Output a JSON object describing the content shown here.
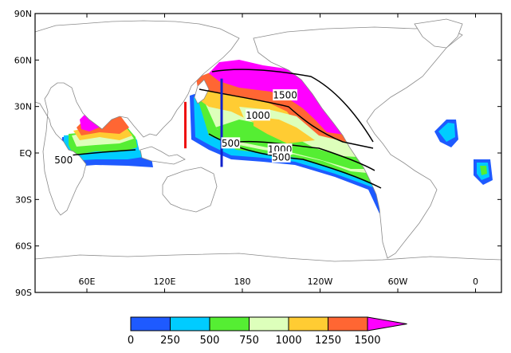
{
  "map": {
    "lat_ticks": [
      {
        "lat": 90,
        "label": "90N"
      },
      {
        "lat": 60,
        "label": "60N"
      },
      {
        "lat": 30,
        "label": "30N"
      },
      {
        "lat": 0,
        "label": "EQ"
      },
      {
        "lat": -30,
        "label": "30S"
      },
      {
        "lat": -60,
        "label": "60S"
      },
      {
        "lat": -90,
        "label": "90S"
      }
    ],
    "lon_ticks": [
      {
        "lon": 60,
        "label": "60E"
      },
      {
        "lon": 120,
        "label": "120E"
      },
      {
        "lon": 180,
        "label": "180"
      },
      {
        "lon": 240,
        "label": "120W"
      },
      {
        "lon": 300,
        "label": "60W"
      },
      {
        "lon": 360,
        "label": "0"
      }
    ],
    "lon_range": [
      20,
      380
    ],
    "lat_range": [
      -90,
      90
    ]
  },
  "contour_labels": [
    {
      "text": "1500",
      "lon": 213,
      "lat": 37
    },
    {
      "text": "1000",
      "lon": 192,
      "lat": 24
    },
    {
      "text": "1000",
      "lon": 209,
      "lat": 2
    },
    {
      "text": "500",
      "lon": 171,
      "lat": 6
    },
    {
      "text": "500",
      "lon": 210,
      "lat": -3
    },
    {
      "text": "500",
      "lon": 42,
      "lat": -5
    }
  ],
  "sections": [
    {
      "name": "red-section",
      "color": "#ee1111",
      "lon": 136,
      "lat_start": 33,
      "lat_end": 3
    },
    {
      "name": "blue-section",
      "color": "#1122cc",
      "lon": 164,
      "lat_start": 48,
      "lat_end": -9
    }
  ],
  "colorbar": {
    "ticks": [
      "0",
      "250",
      "500",
      "750",
      "1000",
      "1250",
      "1500"
    ],
    "colors": [
      "#1e5aff",
      "#00ccff",
      "#55ee33",
      "#ddffbb",
      "#ffcc33",
      "#ff6633",
      "#ff00ff"
    ]
  }
}
